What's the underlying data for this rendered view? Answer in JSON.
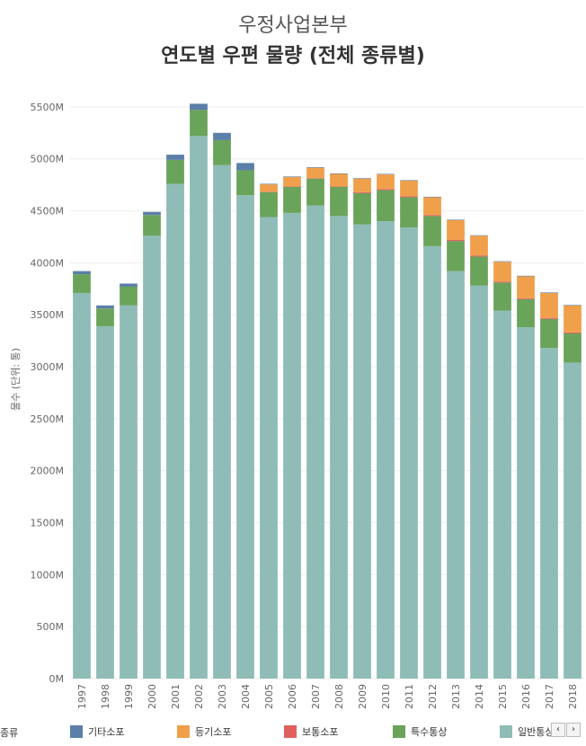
{
  "header": {
    "subtitle": "우정사업본부",
    "title": "연도별 우편 물량 (전체 종류별)"
  },
  "legend": {
    "title": "종류",
    "scroll_prev": "‹",
    "scroll_next": "›"
  },
  "colors": {
    "일반통상": "#8fbcb7",
    "특수통상": "#6aa35a",
    "등기소포": "#f0a04b",
    "보통소포": "#e06060",
    "기타소포": "#5b7fa8",
    "grid": "#eeeeee"
  },
  "chart_data": {
    "type": "bar",
    "stacked": true,
    "title": "연도별 우편 물량 (전체 종류별)",
    "subtitle": "우정사업본부",
    "ylabel": "물수 (단위: 통)",
    "xlabel": "",
    "ylim": [
      0,
      5750
    ],
    "yticks": [
      0,
      500,
      1000,
      1500,
      2000,
      2500,
      3000,
      3500,
      4000,
      4500,
      5000,
      5500
    ],
    "ytick_labels": [
      "0M",
      "500M",
      "1000M",
      "1500M",
      "2000M",
      "2500M",
      "3000M",
      "3500M",
      "4000M",
      "4500M",
      "5000M",
      "5500M"
    ],
    "categories": [
      "1997",
      "1998",
      "1999",
      "2000",
      "2001",
      "2002",
      "2003",
      "2004",
      "2005",
      "2006",
      "2007",
      "2008",
      "2009",
      "2010",
      "2011",
      "2012",
      "2013",
      "2014",
      "2015",
      "2016",
      "2017",
      "2018"
    ],
    "legend_order": [
      "기타소포",
      "등기소포",
      "보통소포",
      "특수통상",
      "일반통상"
    ],
    "series": [
      {
        "name": "일반통상",
        "values": [
          3710,
          3390,
          3590,
          4260,
          4760,
          5220,
          4940,
          4650,
          4440,
          4480,
          4550,
          4450,
          4370,
          4400,
          4340,
          4160,
          3920,
          3780,
          3540,
          3380,
          3180,
          3040
        ]
      },
      {
        "name": "특수통상",
        "values": [
          180,
          170,
          180,
          200,
          230,
          250,
          240,
          240,
          240,
          250,
          260,
          280,
          300,
          300,
          290,
          290,
          290,
          280,
          270,
          270,
          280,
          280
        ]
      },
      {
        "name": "보통소포",
        "values": [
          0,
          0,
          0,
          0,
          0,
          0,
          0,
          0,
          5,
          5,
          5,
          5,
          10,
          10,
          10,
          10,
          10,
          10,
          10,
          10,
          10,
          10
        ]
      },
      {
        "name": "등기소포",
        "values": [
          0,
          0,
          0,
          0,
          0,
          0,
          0,
          0,
          70,
          90,
          100,
          120,
          130,
          140,
          150,
          170,
          190,
          190,
          190,
          210,
          240,
          260
        ]
      },
      {
        "name": "기타소포",
        "values": [
          30,
          30,
          30,
          30,
          50,
          60,
          70,
          70,
          5,
          5,
          5,
          5,
          5,
          5,
          5,
          5,
          5,
          5,
          5,
          5,
          5,
          5
        ]
      }
    ]
  }
}
